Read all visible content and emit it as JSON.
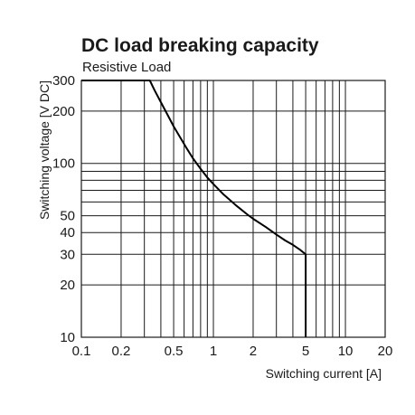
{
  "chart_data": {
    "type": "line",
    "title": "DC load breaking capacity",
    "subtitle": "Resistive Load",
    "xlabel": "Switching current [A]",
    "ylabel": "Switching voltage [V DC]",
    "x_scale": "log",
    "y_scale": "log",
    "xlim": [
      0.1,
      20
    ],
    "ylim": [
      10,
      300
    ],
    "x_ticks": [
      0.1,
      0.2,
      0.5,
      1,
      2,
      5,
      10,
      20
    ],
    "x_tick_labels": [
      "0.1",
      "0.2",
      "0.5",
      "1",
      "2",
      "5",
      "10",
      "20"
    ],
    "y_ticks": [
      10,
      20,
      30,
      40,
      50,
      100,
      200,
      300
    ],
    "y_tick_labels": [
      "10",
      "20",
      "30",
      "40",
      "50",
      "100",
      "200",
      "300"
    ],
    "x_grid": [
      0.2,
      0.3,
      0.4,
      0.5,
      0.6,
      0.7,
      0.8,
      0.9,
      1,
      2,
      3,
      4,
      5,
      6,
      7,
      8,
      9,
      10
    ],
    "y_grid": [
      20,
      30,
      40,
      50,
      60,
      70,
      80,
      90,
      100,
      200
    ],
    "grid": true,
    "series": [
      {
        "color": "#000000",
        "x": [
          0.1,
          0.33,
          0.36,
          0.4,
          0.45,
          0.5,
          0.56,
          0.62,
          0.7,
          0.8,
          0.9,
          1.0,
          1.2,
          1.5,
          1.8,
          2.0,
          2.5,
          3.0,
          3.5,
          4.0,
          4.5,
          5.0,
          5.0
        ],
        "y": [
          300,
          300,
          262,
          225,
          190,
          163,
          141,
          124,
          107,
          93,
          83,
          76,
          66,
          57,
          51,
          48,
          43,
          39,
          36,
          34,
          32,
          30,
          10
        ]
      }
    ]
  }
}
